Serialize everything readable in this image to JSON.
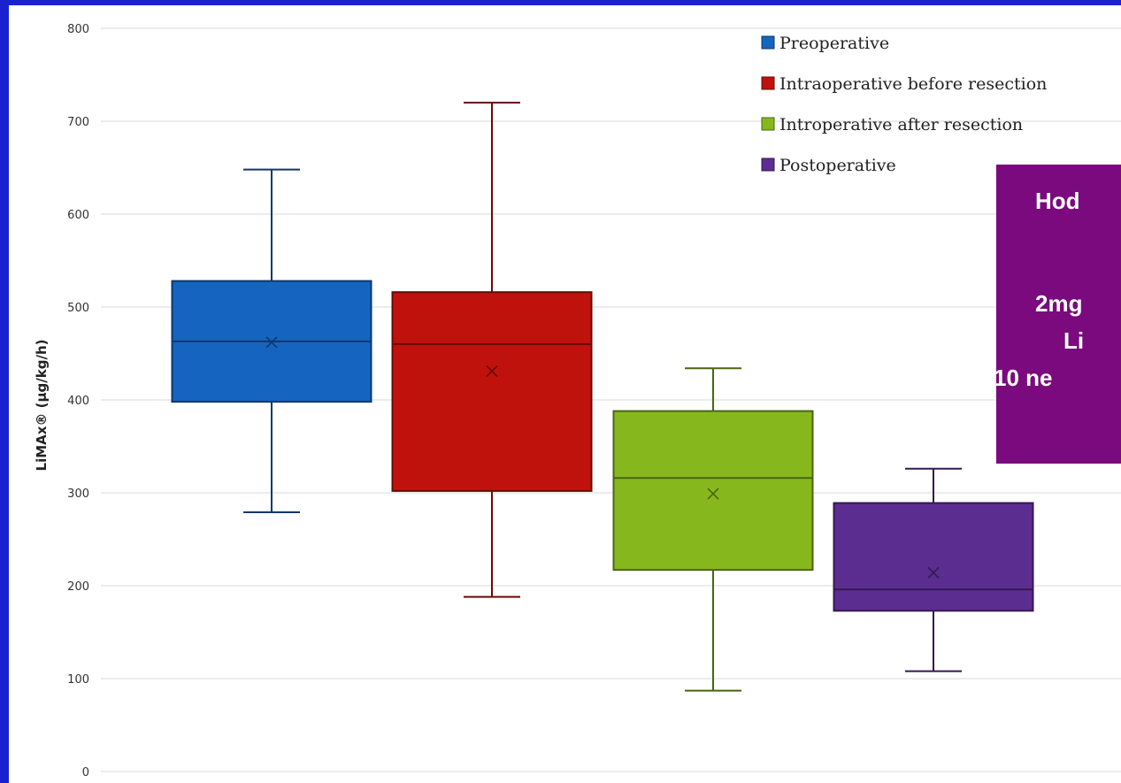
{
  "chart_data": {
    "type": "box",
    "ylabel": "LiMAx® (µg/kg/h)",
    "ylim": [
      0,
      800
    ],
    "yticks": [
      "0",
      "100",
      "200",
      "300",
      "400",
      "500",
      "600",
      "700",
      "800"
    ],
    "grid": true,
    "legend_position": "top-right",
    "series": [
      {
        "name": "Preoperative",
        "color": "#1565c0",
        "whisker_low": 279,
        "q1": 398,
        "median": 463,
        "q3": 528,
        "whisker_high": 648,
        "mean": 462
      },
      {
        "name": "Intraoperative before resection",
        "color": "#c0120c",
        "whisker_low": 188,
        "q1": 302,
        "median": 460,
        "q3": 516,
        "whisker_high": 720,
        "mean": 431
      },
      {
        "name": "Introperative after resection",
        "color": "#86b81e",
        "whisker_low": 87,
        "q1": 217,
        "median": 316,
        "q3": 388,
        "whisker_high": 434,
        "mean": 299
      },
      {
        "name": "Postoperative",
        "color": "#5c2d91",
        "whisker_low": 108,
        "q1": 173,
        "median": 196,
        "q3": 289,
        "whisker_high": 326,
        "mean": 214
      }
    ]
  },
  "overlay": {
    "color": "#7a0a7e",
    "lines": [
      "Hod",
      "2mg",
      "Li",
      "10 ne"
    ]
  }
}
